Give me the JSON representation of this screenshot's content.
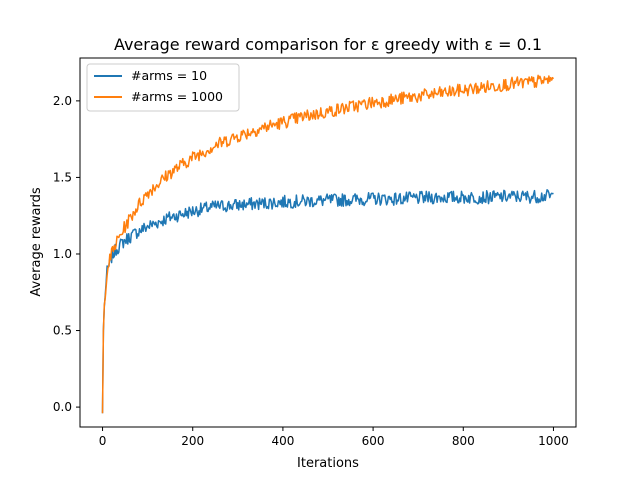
{
  "chart_data": {
    "type": "line",
    "title": "Average reward comparison for ε greedy with ε = 0.1",
    "xlabel": "Iterations",
    "ylabel": "Average rewards",
    "xlim": [
      -50,
      1050
    ],
    "ylim": [
      -0.13,
      2.28
    ],
    "xticks": [
      0,
      200,
      400,
      600,
      800,
      1000
    ],
    "yticks": [
      0.0,
      0.5,
      1.0,
      1.5,
      2.0
    ],
    "xtick_labels": [
      "0",
      "200",
      "400",
      "600",
      "800",
      "1000"
    ],
    "ytick_labels": [
      "0.0",
      "0.5",
      "1.0",
      "1.5",
      "2.0"
    ],
    "grid": false,
    "legend_position": "upper-left",
    "x": [
      0,
      2,
      5,
      10,
      20,
      30,
      50,
      75,
      100,
      150,
      200,
      250,
      300,
      350,
      400,
      450,
      500,
      550,
      600,
      650,
      700,
      750,
      800,
      850,
      900,
      950,
      1000
    ],
    "series": [
      {
        "name": "#arms = 10",
        "color": "#1f77b4",
        "values": [
          -0.04,
          0.5,
          0.72,
          0.88,
          0.98,
          1.03,
          1.09,
          1.14,
          1.18,
          1.24,
          1.28,
          1.31,
          1.32,
          1.33,
          1.34,
          1.345,
          1.35,
          1.355,
          1.36,
          1.36,
          1.365,
          1.37,
          1.37,
          1.37,
          1.375,
          1.375,
          1.38
        ]
      },
      {
        "name": "#arms = 1000",
        "color": "#ff7f0e",
        "values": [
          -0.04,
          0.5,
          0.72,
          0.9,
          1.0,
          1.07,
          1.18,
          1.3,
          1.4,
          1.53,
          1.63,
          1.71,
          1.77,
          1.82,
          1.86,
          1.9,
          1.93,
          1.96,
          1.99,
          2.01,
          2.03,
          2.05,
          2.07,
          2.09,
          2.11,
          2.12,
          2.14
        ]
      }
    ]
  }
}
